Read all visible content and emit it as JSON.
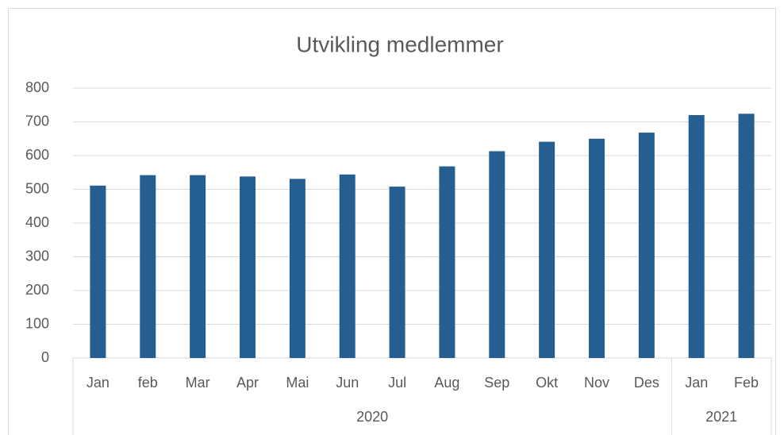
{
  "chart_data": {
    "type": "bar",
    "title": "Utvikling medlemmer",
    "categories": [
      "Jan",
      "feb",
      "Mar",
      "Apr",
      "Mai",
      "Jun",
      "Jul",
      "Aug",
      "Sep",
      "Okt",
      "Nov",
      "Des",
      "Jan",
      "Feb"
    ],
    "groups": [
      {
        "label": "2020",
        "count": 12
      },
      {
        "label": "2021",
        "count": 2
      }
    ],
    "values": [
      511,
      542,
      542,
      538,
      531,
      544,
      508,
      568,
      613,
      641,
      650,
      668,
      720,
      724
    ],
    "color": "#255e91",
    "ylim": [
      0,
      800
    ],
    "yticks": [
      0,
      100,
      200,
      300,
      400,
      500,
      600,
      700,
      800
    ],
    "grid": true
  }
}
